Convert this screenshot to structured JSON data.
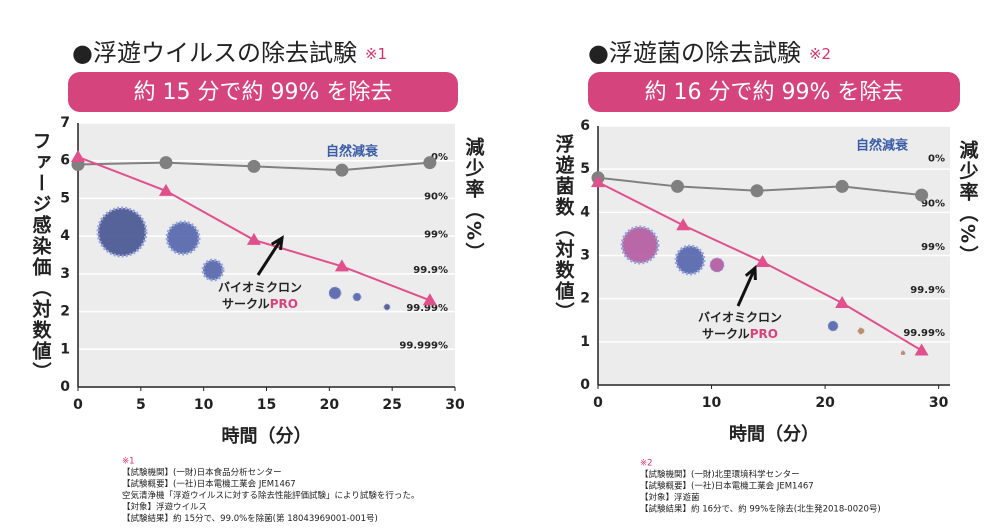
{
  "chart_data": [
    {
      "type": "line",
      "title": "●浮遊ウイルスの除去試験",
      "title_note": "※1",
      "banner": "約 15 分で約 99% を除去",
      "y_label": "ファージ感染価（対数値）",
      "y2_label": "減少率（%）",
      "x_label": "時間（分）",
      "xlim": [
        0,
        30
      ],
      "xticks": [
        0,
        5,
        10,
        15,
        20,
        25,
        30
      ],
      "ylim": [
        0,
        7
      ],
      "yticks": [
        0,
        1,
        2,
        3,
        4,
        5,
        6,
        7
      ],
      "grid": true,
      "series": [
        {
          "name": "自然減衰",
          "color": "#808080",
          "marker": "circle",
          "x": [
            0,
            7,
            14,
            21,
            28
          ],
          "values": [
            5.9,
            5.95,
            5.85,
            5.75,
            5.95
          ]
        },
        {
          "color": "#e0508c",
          "marker": "triangle",
          "x": [
            0,
            7,
            14,
            21,
            28
          ],
          "values": [
            6.1,
            5.2,
            3.9,
            3.2,
            2.3
          ]
        }
      ],
      "reduction_labels": [
        {
          "y": 6.1,
          "label": "0%"
        },
        {
          "y": 5.05,
          "label": "90%"
        },
        {
          "y": 4.05,
          "label": "99%"
        },
        {
          "y": 3.1,
          "label": "99.9%"
        },
        {
          "y": 2.1,
          "label": "99.99%"
        },
        {
          "y": 1.1,
          "label": "99.999%"
        }
      ],
      "product_label": [
        "バイオミクロン",
        "サークル"
      ],
      "product_label_accent": "PRO",
      "footnotes": [
        "※1",
        "【試験機関】(一財)日本食品分析センター",
        "【試験概要】(一社)日本電機工業会 JEM1467",
        "空気清浄機「浮遊ウイルスに対する除去性能評価試験」により試験を行った。",
        "【対象】浮遊ウイルス",
        "【試験結果】約 15分で、99.0%を除菌(第 18043969001-001号)"
      ]
    },
    {
      "type": "line",
      "title": "●浮遊菌の除去試験",
      "title_note": "※2",
      "banner": "約 16 分で約 99% を除去",
      "y_label": "浮遊菌数（対数値）",
      "y2_label": "減少率（%）",
      "x_label": "時間（分）",
      "xlim": [
        0,
        31
      ],
      "xticks": [
        0,
        10,
        20,
        30
      ],
      "ylim": [
        0,
        6
      ],
      "yticks": [
        0,
        1,
        2,
        3,
        4,
        5,
        6
      ],
      "grid": true,
      "series": [
        {
          "name": "自然減衰",
          "color": "#808080",
          "marker": "circle",
          "x": [
            0,
            7,
            14,
            21.5,
            28.5
          ],
          "values": [
            4.8,
            4.6,
            4.5,
            4.6,
            4.4
          ]
        },
        {
          "color": "#e0508c",
          "marker": "triangle",
          "x": [
            0,
            7.5,
            14.5,
            21.5,
            28.5
          ],
          "values": [
            4.7,
            3.7,
            2.85,
            1.9,
            0.8
          ]
        }
      ],
      "reduction_labels": [
        {
          "y": 5.25,
          "label": "0%"
        },
        {
          "y": 4.2,
          "label": "90%"
        },
        {
          "y": 3.2,
          "label": "99%"
        },
        {
          "y": 2.2,
          "label": "99.9%"
        },
        {
          "y": 1.2,
          "label": "99.99%"
        }
      ],
      "product_label": [
        "バイオミクロン",
        "サークル"
      ],
      "product_label_accent": "PRO",
      "footnotes": [
        "※2",
        "【試験機関】(一財)北里環境科学センター",
        "【試験概要】(一社)日本電機工業会 JEM1467",
        "【対象】浮遊菌",
        "【試験結果】約 16分で、約 99%を除去(北生発2018-0020号)"
      ]
    }
  ]
}
